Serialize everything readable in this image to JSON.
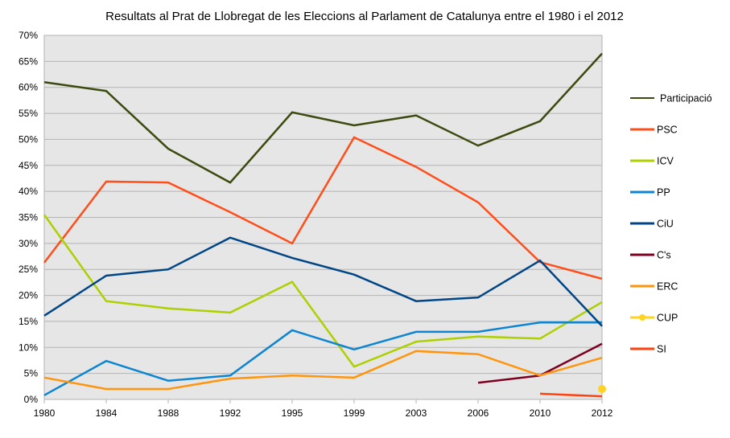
{
  "chart_data": {
    "type": "line",
    "title": "Resultats al Prat de Llobregat de les Eleccions al Parlament de Catalunya entre el 1980 i el 2012",
    "xlabel": "",
    "ylabel": "",
    "categories": [
      "1980",
      "1984",
      "1988",
      "1992",
      "1995",
      "1999",
      "2003",
      "2006",
      "2010",
      "2012"
    ],
    "ylim": [
      0,
      70
    ],
    "yticks": [
      "0%",
      "5%",
      "10%",
      "15%",
      "20%",
      "25%",
      "30%",
      "35%",
      "40%",
      "45%",
      "50%",
      "55%",
      "60%",
      "65%",
      "70%"
    ],
    "ytick_values": [
      0,
      5,
      10,
      15,
      20,
      25,
      30,
      35,
      40,
      45,
      50,
      55,
      60,
      65,
      70
    ],
    "grid": true,
    "legend_position": "right",
    "series": [
      {
        "name": "Participació",
        "color": "#3b4a0e",
        "values": [
          61.0,
          59.3,
          48.2,
          41.7,
          55.2,
          52.7,
          54.6,
          48.8,
          53.5,
          66.5
        ]
      },
      {
        "name": "PSC",
        "color": "#ff4e1a",
        "values": [
          26.3,
          41.9,
          41.7,
          36.0,
          30.0,
          50.4,
          44.7,
          37.9,
          26.4,
          23.2
        ]
      },
      {
        "name": "ICV",
        "color": "#aecf00",
        "values": [
          35.5,
          18.9,
          17.5,
          16.7,
          22.6,
          6.3,
          11.1,
          12.1,
          11.7,
          18.7
        ]
      },
      {
        "name": "PP",
        "color": "#0e85d0",
        "values": [
          0.8,
          7.4,
          3.6,
          4.6,
          13.3,
          9.6,
          13.0,
          13.0,
          14.8,
          14.8
        ]
      },
      {
        "name": "CiU",
        "color": "#004586",
        "values": [
          16.1,
          23.8,
          25.0,
          31.1,
          27.2,
          24.0,
          18.9,
          19.6,
          26.7,
          14.1
        ]
      },
      {
        "name": "C's",
        "color": "#7e0021",
        "values": [
          null,
          null,
          null,
          null,
          null,
          null,
          null,
          3.2,
          4.6,
          10.7
        ]
      },
      {
        "name": "ERC",
        "color": "#ff950e",
        "values": [
          4.2,
          2.0,
          2.0,
          4.0,
          4.6,
          4.2,
          9.3,
          8.7,
          4.6,
          8.0
        ]
      },
      {
        "name": "CUP",
        "color": "#ffd320",
        "marker": "circle",
        "values": [
          null,
          null,
          null,
          null,
          null,
          null,
          null,
          null,
          null,
          2.0
        ]
      },
      {
        "name": "SI",
        "color": "#ff420e",
        "values": [
          null,
          null,
          null,
          null,
          null,
          null,
          null,
          null,
          1.1,
          0.6
        ]
      }
    ]
  }
}
